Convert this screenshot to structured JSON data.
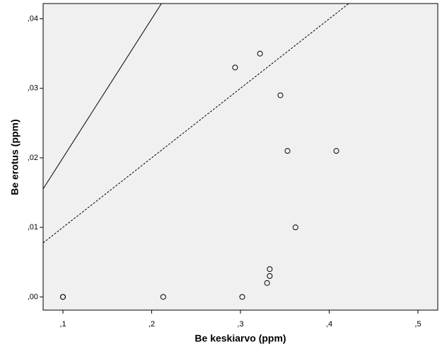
{
  "chart_data": {
    "type": "scatter",
    "x_label": "Be keskiarvo (ppm)",
    "y_label": "Be erotus (ppm)",
    "x": [
      0.1,
      0.1,
      0.213,
      0.302,
      0.294,
      0.322,
      0.345,
      0.353,
      0.408,
      0.362,
      0.333,
      0.333,
      0.33
    ],
    "values": [
      0,
      0,
      0,
      0,
      0.033,
      0.035,
      0.029,
      0.021,
      0.021,
      0.01,
      0.004,
      0.003,
      0.002
    ],
    "color": "#000000",
    "xlim": [
      0.0777,
      0.5223
    ],
    "ylim": [
      -0.0019,
      0.0422
    ],
    "xticks": [
      {
        "value": 0.1,
        "label": ",1"
      },
      {
        "value": 0.2,
        "label": ",2"
      },
      {
        "value": 0.3,
        "label": ",3"
      },
      {
        "value": 0.4,
        "label": ",4"
      },
      {
        "value": 0.5,
        "label": ",5"
      }
    ],
    "yticks": [
      {
        "value": 0,
        "label": ",00"
      },
      {
        "value": 0.01,
        "label": ",01"
      },
      {
        "value": 0.02,
        "label": ",02"
      },
      {
        "value": 0.03,
        "label": ",03"
      },
      {
        "value": 0.04,
        "label": ",04"
      }
    ],
    "reference_lines": [
      {
        "slope": 0.2,
        "style": "solid"
      },
      {
        "slope": 0.1,
        "style": "dashed"
      }
    ],
    "background": "#f0f0f0"
  }
}
